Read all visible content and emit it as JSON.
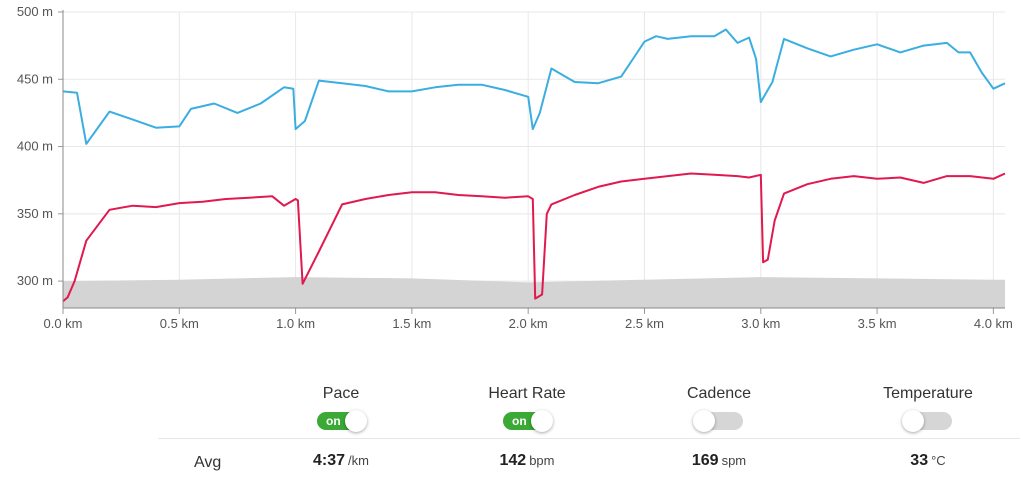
{
  "chart_data": {
    "type": "line",
    "xlabel": "",
    "ylabel": "",
    "x_unit": "km",
    "y_unit": "m",
    "xlim": [
      0,
      4.05
    ],
    "ylim": [
      280,
      500
    ],
    "x_ticks": [
      "0.0 km",
      "0.5 km",
      "1.0 km",
      "1.5 km",
      "2.0 km",
      "2.5 km",
      "3.0 km",
      "3.5 km",
      "4.0 km"
    ],
    "y_ticks": [
      "300 m",
      "350 m",
      "400 m",
      "450 m",
      "500 m"
    ],
    "grid": true,
    "legend": "none",
    "colors": {
      "pace": "#3aaee0",
      "heart_rate": "#e0194f",
      "elevation": "#d4d4d4",
      "grid": "#e8e8e8"
    },
    "series": [
      {
        "key": "pace",
        "x": [
          0,
          0.06,
          0.1,
          0.2,
          0.3,
          0.4,
          0.5,
          0.55,
          0.65,
          0.75,
          0.85,
          0.95,
          0.99,
          1.0,
          1.04,
          1.1,
          1.2,
          1.3,
          1.4,
          1.5,
          1.6,
          1.7,
          1.8,
          1.9,
          2.0,
          2.02,
          2.05,
          2.1,
          2.2,
          2.3,
          2.4,
          2.5,
          2.55,
          2.6,
          2.7,
          2.8,
          2.85,
          2.9,
          2.95,
          2.98,
          3.0,
          3.05,
          3.1,
          3.2,
          3.3,
          3.4,
          3.5,
          3.6,
          3.7,
          3.8,
          3.85,
          3.9,
          3.95,
          4.0,
          4.05
        ],
        "y": [
          441,
          440,
          402,
          426,
          420,
          414,
          415,
          428,
          432,
          425,
          432,
          444,
          443,
          413,
          419,
          449,
          447,
          445,
          441,
          441,
          444,
          446,
          446,
          442,
          437,
          413,
          425,
          458,
          448,
          447,
          452,
          478,
          482,
          480,
          482,
          482,
          487,
          477,
          481,
          465,
          433,
          448,
          480,
          473,
          467,
          472,
          476,
          470,
          475,
          477,
          470,
          470,
          455,
          443,
          447
        ]
      },
      {
        "key": "heart_rate",
        "x": [
          0,
          0.02,
          0.05,
          0.1,
          0.2,
          0.3,
          0.4,
          0.5,
          0.6,
          0.7,
          0.8,
          0.9,
          0.95,
          1.0,
          1.01,
          1.03,
          1.1,
          1.2,
          1.3,
          1.4,
          1.5,
          1.6,
          1.7,
          1.8,
          1.9,
          2.0,
          2.02,
          2.03,
          2.06,
          2.08,
          2.1,
          2.2,
          2.3,
          2.4,
          2.5,
          2.6,
          2.7,
          2.8,
          2.9,
          2.95,
          3.0,
          3.01,
          3.03,
          3.06,
          3.1,
          3.2,
          3.3,
          3.4,
          3.5,
          3.6,
          3.7,
          3.8,
          3.9,
          4.0,
          4.05
        ],
        "y": [
          285,
          288,
          300,
          330,
          353,
          356,
          355,
          358,
          359,
          361,
          362,
          363,
          356,
          361,
          360,
          298,
          322,
          357,
          361,
          364,
          366,
          366,
          364,
          363,
          362,
          363,
          361,
          287,
          290,
          350,
          357,
          364,
          370,
          374,
          376,
          378,
          380,
          379,
          378,
          377,
          379,
          314,
          316,
          345,
          365,
          372,
          376,
          378,
          376,
          377,
          373,
          378,
          378,
          376,
          380
        ]
      },
      {
        "key": "elevation",
        "x": [
          0,
          0.5,
          1.0,
          1.5,
          2.0,
          2.5,
          3.0,
          3.5,
          4.0,
          4.05
        ],
        "y": [
          300,
          301,
          303,
          302,
          299,
          301,
          303,
          302,
          301,
          301
        ]
      }
    ]
  },
  "toggles": [
    {
      "label": "Pace",
      "state": "on",
      "state_label": "on"
    },
    {
      "label": "Heart Rate",
      "state": "on",
      "state_label": "on"
    },
    {
      "label": "Cadence",
      "state": "off",
      "state_label": ""
    },
    {
      "label": "Temperature",
      "state": "off",
      "state_label": ""
    }
  ],
  "averages": {
    "label": "Avg",
    "items": [
      {
        "value": "4:37",
        "unit": "/km"
      },
      {
        "value": "142",
        "unit": "bpm"
      },
      {
        "value": "169",
        "unit": "spm"
      },
      {
        "value": "33",
        "unit": "°C"
      }
    ]
  }
}
